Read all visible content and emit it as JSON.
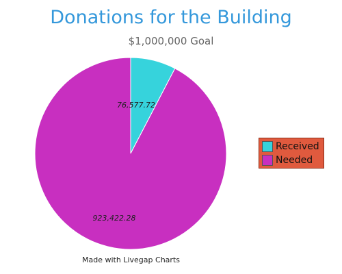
{
  "chart_data": {
    "type": "pie",
    "title": "Donations for the Building",
    "subtitle": "$1,000,000 Goal",
    "slices": [
      {
        "label": "Received",
        "value": 76577.72,
        "value_label": "76,577.72",
        "color": "#36d3dc"
      },
      {
        "label": "Needed",
        "value": 923422.28,
        "value_label": "923,422.28",
        "color": "#c82fc0"
      }
    ],
    "legend": {
      "placement": "right",
      "background": "#e05a3e"
    },
    "footer": "Made with Livegap Charts"
  }
}
